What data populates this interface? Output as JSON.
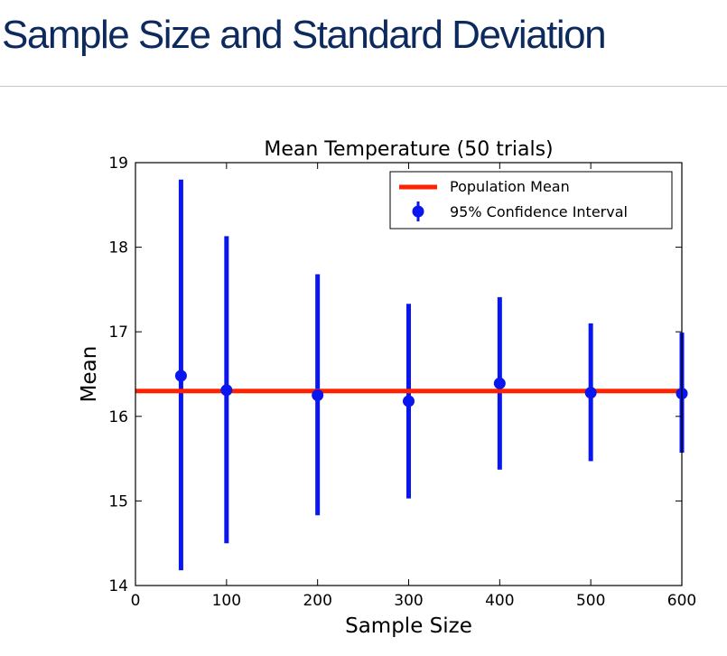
{
  "slide": {
    "title": "Sample Size and Standard Deviation"
  },
  "chart_data": {
    "type": "scatter",
    "title": "Mean Temperature (50 trials)",
    "xlabel": "Sample Size",
    "ylabel": "Mean",
    "xlim": [
      0,
      600
    ],
    "ylim": [
      14,
      19
    ],
    "xticks": [
      0,
      100,
      200,
      300,
      400,
      500,
      600
    ],
    "yticks": [
      14,
      15,
      16,
      17,
      18,
      19
    ],
    "grid": false,
    "legend_position": "top-right",
    "population_mean": {
      "name": "Population Mean",
      "value": 16.3,
      "color": "#ff2200"
    },
    "series": [
      {
        "name": "95% Confidence Interval",
        "color": "#0a16ee",
        "x": [
          50,
          100,
          200,
          300,
          400,
          500,
          600
        ],
        "y": [
          16.48,
          16.31,
          16.25,
          16.18,
          16.39,
          16.28,
          16.27
        ],
        "yerr_low": [
          14.18,
          14.5,
          14.83,
          15.03,
          15.37,
          15.47,
          15.57
        ],
        "yerr_high": [
          18.8,
          18.13,
          17.68,
          17.33,
          17.41,
          17.1,
          16.99
        ]
      }
    ]
  }
}
